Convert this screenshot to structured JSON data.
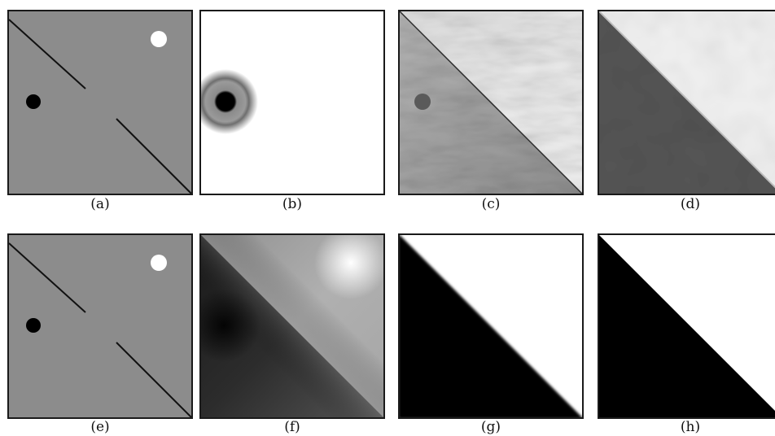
{
  "figure": {
    "panels": [
      {
        "id": "a",
        "caption": "(a)"
      },
      {
        "id": "b",
        "caption": "(b)"
      },
      {
        "id": "c",
        "caption": "(c)"
      },
      {
        "id": "d",
        "caption": "(d)"
      },
      {
        "id": "e",
        "caption": "(e)"
      },
      {
        "id": "f",
        "caption": "(f)"
      },
      {
        "id": "g",
        "caption": "(g)"
      },
      {
        "id": "h",
        "caption": "(h)"
      }
    ]
  },
  "colors": {
    "mid_gray": "#8c8c8c",
    "frame": "#1a1a1a",
    "black": "#000000",
    "white": "#ffffff"
  }
}
